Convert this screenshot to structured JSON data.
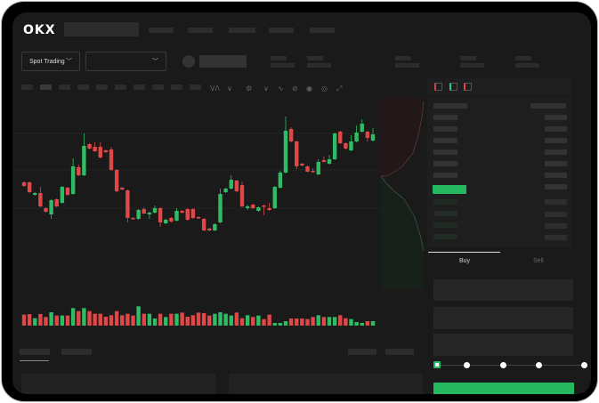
{
  "header": {
    "logo": "OKX",
    "nav_items": 4
  },
  "toolbar": {
    "market_select": "Spot Trading",
    "pair_select": "",
    "chevron_icon": "chevron-down-icon"
  },
  "chart_tools": [
    "indicator-icon",
    "chevron-down-icon",
    "settings-icon",
    "chevron-down-icon",
    "line-icon",
    "draw-icon",
    "camera-icon",
    "target-icon",
    "fullscreen-icon"
  ],
  "order_book": {
    "view_icons": [
      "book-both-icon",
      "book-buy-icon",
      "book-sell-icon"
    ]
  },
  "trade": {
    "tabs": [
      "Buy",
      "Sell"
    ],
    "active_tab": "Buy",
    "slider_value_percent": 0,
    "slider_marks": [
      0,
      25,
      50,
      75,
      100
    ]
  },
  "colors": {
    "up": "#2ebd64",
    "down": "#e04848",
    "accent": "#25b860",
    "background": "#1a1a1a"
  },
  "chart_data": {
    "type": "candlestick",
    "grid": true,
    "candles_ohlc": [
      [
        97,
        98,
        92,
        93
      ],
      [
        97,
        98,
        85,
        86
      ],
      [
        83,
        86,
        82,
        85
      ],
      [
        85,
        92,
        69,
        70
      ],
      [
        68,
        69,
        63,
        64
      ],
      [
        61,
        78,
        56,
        77
      ],
      [
        78,
        79,
        69,
        70
      ],
      [
        74,
        93,
        73,
        92
      ],
      [
        91,
        92,
        82,
        83
      ],
      [
        84,
        124,
        83,
        115
      ],
      [
        114,
        117,
        104,
        105
      ],
      [
        105,
        152,
        104,
        138
      ],
      [
        140,
        141,
        134,
        135
      ],
      [
        137,
        142,
        131,
        132
      ],
      [
        137,
        142,
        124,
        125
      ],
      [
        133,
        134,
        130,
        131
      ],
      [
        134,
        137,
        110,
        111
      ],
      [
        111,
        112,
        86,
        87
      ],
      [
        91,
        92,
        88,
        89
      ],
      [
        88,
        89,
        52,
        57
      ],
      [
        57,
        58,
        55,
        56
      ],
      [
        56,
        67,
        55,
        66
      ],
      [
        67,
        69,
        61,
        62
      ],
      [
        61,
        64,
        56,
        63
      ],
      [
        63,
        71,
        62,
        68
      ],
      [
        68,
        69,
        47,
        52
      ],
      [
        51,
        56,
        50,
        55
      ],
      [
        57,
        58,
        52,
        53
      ],
      [
        54,
        68,
        53,
        65
      ],
      [
        65,
        66,
        62,
        63
      ],
      [
        67,
        68,
        54,
        55
      ],
      [
        67,
        68,
        56,
        57
      ],
      [
        58,
        59,
        56,
        57
      ],
      [
        56,
        57,
        42,
        43
      ],
      [
        45,
        46,
        42,
        43
      ],
      [
        43,
        51,
        42,
        50
      ],
      [
        52,
        90,
        51,
        84
      ],
      [
        86,
        91,
        85,
        90
      ],
      [
        90,
        105,
        89,
        100
      ],
      [
        99,
        100,
        86,
        87
      ],
      [
        94,
        98,
        69,
        70
      ],
      [
        68,
        72,
        66,
        70
      ],
      [
        72,
        73,
        67,
        68
      ],
      [
        65,
        70,
        64,
        69
      ],
      [
        71,
        72,
        60,
        70
      ],
      [
        68,
        74,
        65,
        66
      ],
      [
        68,
        93,
        67,
        92
      ],
      [
        91,
        110,
        90,
        108
      ],
      [
        108,
        171,
        107,
        155
      ],
      [
        157,
        159,
        142,
        143
      ],
      [
        143,
        144,
        112,
        115
      ],
      [
        118,
        119,
        115,
        116
      ],
      [
        115,
        116,
        108,
        109
      ],
      [
        110,
        113,
        108,
        109
      ],
      [
        106,
        123,
        105,
        120
      ],
      [
        122,
        126,
        119,
        120
      ],
      [
        118,
        128,
        117,
        123
      ],
      [
        123,
        153,
        122,
        152
      ],
      [
        154,
        155,
        140,
        141
      ],
      [
        141,
        142,
        134,
        135
      ],
      [
        133,
        150,
        132,
        143
      ],
      [
        143,
        161,
        142,
        153
      ],
      [
        154,
        168,
        153,
        163
      ],
      [
        154,
        155,
        143,
        147
      ],
      [
        144,
        158,
        143,
        151
      ]
    ],
    "volumes": [
      37,
      39,
      25,
      39,
      29,
      45,
      34,
      34,
      34,
      59,
      49,
      59,
      49,
      40,
      40,
      30,
      35,
      49,
      35,
      40,
      34,
      65,
      40,
      40,
      24,
      40,
      29,
      40,
      40,
      44,
      30,
      35,
      44,
      42,
      34,
      40,
      45,
      40,
      34,
      44,
      25,
      35,
      29,
      34,
      22,
      37,
      9,
      9,
      15,
      24,
      24,
      24,
      22,
      29,
      35,
      29,
      29,
      29,
      35,
      25,
      22,
      12,
      9,
      15,
      15
    ]
  }
}
